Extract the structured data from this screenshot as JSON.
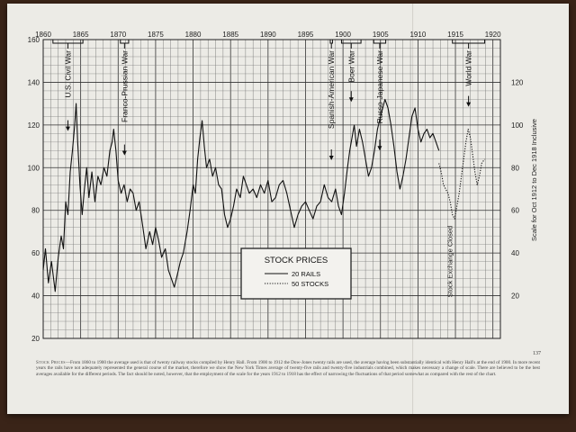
{
  "chart_data": {
    "type": "line",
    "title": "",
    "xlabel": "",
    "ylabel": "",
    "x_ticks": [
      1860,
      1865,
      1870,
      1875,
      1880,
      1885,
      1890,
      1895,
      1900,
      1905,
      1910,
      1915,
      1920
    ],
    "xlim": [
      1860,
      1921
    ],
    "ylim_left": [
      20,
      160
    ],
    "y_ticks_left": [
      20,
      40,
      60,
      80,
      100,
      120,
      140,
      160
    ],
    "ylim_right": [
      0,
      140
    ],
    "y_ticks_right": [
      20,
      40,
      60,
      80,
      100,
      120
    ],
    "right_axis_label": "Scale for Oct 1912 to Dec 1918 Inclusive",
    "grid": true,
    "legend": {
      "title": "STOCK PRICES",
      "placement": "bottom-center",
      "entries": [
        "20 RAILS",
        "50 STOCKS"
      ]
    },
    "series": [
      {
        "name": "20 RAILS",
        "style": "solid",
        "points": [
          [
            1860.0,
            52
          ],
          [
            1860.3,
            62
          ],
          [
            1860.7,
            46
          ],
          [
            1861.1,
            56
          ],
          [
            1861.6,
            42
          ],
          [
            1862.0,
            58
          ],
          [
            1862.4,
            68
          ],
          [
            1862.7,
            62
          ],
          [
            1863.0,
            84
          ],
          [
            1863.3,
            78
          ],
          [
            1863.6,
            98
          ],
          [
            1863.9,
            108
          ],
          [
            1864.2,
            120
          ],
          [
            1864.4,
            130
          ],
          [
            1864.6,
            112
          ],
          [
            1864.9,
            92
          ],
          [
            1865.2,
            78
          ],
          [
            1865.5,
            90
          ],
          [
            1865.8,
            100
          ],
          [
            1866.1,
            86
          ],
          [
            1866.5,
            98
          ],
          [
            1866.9,
            84
          ],
          [
            1867.3,
            96
          ],
          [
            1867.7,
            92
          ],
          [
            1868.1,
            100
          ],
          [
            1868.5,
            96
          ],
          [
            1868.9,
            108
          ],
          [
            1869.2,
            112
          ],
          [
            1869.4,
            118
          ],
          [
            1869.7,
            108
          ],
          [
            1870.0,
            94
          ],
          [
            1870.4,
            88
          ],
          [
            1870.8,
            92
          ],
          [
            1871.2,
            84
          ],
          [
            1871.6,
            90
          ],
          [
            1872.0,
            88
          ],
          [
            1872.4,
            80
          ],
          [
            1872.8,
            84
          ],
          [
            1873.3,
            72
          ],
          [
            1873.7,
            62
          ],
          [
            1874.2,
            70
          ],
          [
            1874.6,
            64
          ],
          [
            1875.0,
            72
          ],
          [
            1875.4,
            66
          ],
          [
            1875.8,
            58
          ],
          [
            1876.3,
            62
          ],
          [
            1876.7,
            52
          ],
          [
            1877.1,
            48
          ],
          [
            1877.5,
            44
          ],
          [
            1877.9,
            50
          ],
          [
            1878.3,
            56
          ],
          [
            1878.7,
            60
          ],
          [
            1879.2,
            70
          ],
          [
            1879.6,
            80
          ],
          [
            1880.0,
            92
          ],
          [
            1880.3,
            88
          ],
          [
            1880.6,
            104
          ],
          [
            1880.9,
            114
          ],
          [
            1881.2,
            122
          ],
          [
            1881.5,
            110
          ],
          [
            1881.8,
            100
          ],
          [
            1882.2,
            104
          ],
          [
            1882.6,
            96
          ],
          [
            1883.0,
            100
          ],
          [
            1883.4,
            92
          ],
          [
            1883.8,
            90
          ],
          [
            1884.2,
            78
          ],
          [
            1884.6,
            72
          ],
          [
            1885.0,
            76
          ],
          [
            1885.4,
            82
          ],
          [
            1885.8,
            90
          ],
          [
            1886.3,
            86
          ],
          [
            1886.7,
            96
          ],
          [
            1887.1,
            92
          ],
          [
            1887.5,
            88
          ],
          [
            1888.0,
            90
          ],
          [
            1888.5,
            86
          ],
          [
            1889.0,
            92
          ],
          [
            1889.5,
            88
          ],
          [
            1890.0,
            94
          ],
          [
            1890.5,
            84
          ],
          [
            1891.0,
            86
          ],
          [
            1891.5,
            92
          ],
          [
            1892.0,
            94
          ],
          [
            1892.5,
            88
          ],
          [
            1893.0,
            80
          ],
          [
            1893.5,
            72
          ],
          [
            1894.0,
            78
          ],
          [
            1894.5,
            82
          ],
          [
            1895.0,
            84
          ],
          [
            1895.5,
            80
          ],
          [
            1896.0,
            76
          ],
          [
            1896.5,
            82
          ],
          [
            1897.0,
            84
          ],
          [
            1897.5,
            92
          ],
          [
            1898.0,
            86
          ],
          [
            1898.5,
            84
          ],
          [
            1899.0,
            90
          ],
          [
            1899.4,
            82
          ],
          [
            1899.8,
            78
          ],
          [
            1900.2,
            88
          ],
          [
            1900.6,
            100
          ],
          [
            1900.9,
            108
          ],
          [
            1901.2,
            114
          ],
          [
            1901.5,
            120
          ],
          [
            1901.8,
            110
          ],
          [
            1902.2,
            118
          ],
          [
            1902.6,
            112
          ],
          [
            1903.0,
            104
          ],
          [
            1903.4,
            96
          ],
          [
            1903.8,
            100
          ],
          [
            1904.2,
            108
          ],
          [
            1904.6,
            118
          ],
          [
            1905.0,
            124
          ],
          [
            1905.3,
            128
          ],
          [
            1905.6,
            132
          ],
          [
            1906.0,
            128
          ],
          [
            1906.4,
            120
          ],
          [
            1906.8,
            110
          ],
          [
            1907.2,
            98
          ],
          [
            1907.6,
            90
          ],
          [
            1908.0,
            96
          ],
          [
            1908.4,
            104
          ],
          [
            1908.8,
            114
          ],
          [
            1909.2,
            124
          ],
          [
            1909.6,
            128
          ],
          [
            1910.0,
            118
          ],
          [
            1910.4,
            112
          ],
          [
            1910.8,
            116
          ],
          [
            1911.2,
            118
          ],
          [
            1911.6,
            114
          ],
          [
            1912.0,
            116
          ],
          [
            1912.4,
            112
          ],
          [
            1912.8,
            108
          ]
        ]
      },
      {
        "name": "50 STOCKS",
        "style": "dotted",
        "axis": "right",
        "points": [
          [
            1912.8,
            82
          ],
          [
            1913.1,
            78
          ],
          [
            1913.4,
            72
          ],
          [
            1913.7,
            70
          ],
          [
            1914.0,
            68
          ],
          [
            1914.3,
            64
          ],
          [
            1914.6,
            58
          ],
          [
            1914.9,
            56
          ],
          [
            1915.2,
            62
          ],
          [
            1915.5,
            68
          ],
          [
            1915.8,
            76
          ],
          [
            1916.1,
            84
          ],
          [
            1916.4,
            92
          ],
          [
            1916.7,
            98
          ],
          [
            1917.0,
            94
          ],
          [
            1917.3,
            86
          ],
          [
            1917.6,
            78
          ],
          [
            1917.9,
            72
          ],
          [
            1918.2,
            76
          ],
          [
            1918.5,
            82
          ],
          [
            1918.9,
            84
          ]
        ]
      }
    ],
    "annotations": [
      {
        "text": "U.S. Civil War",
        "from": 1861.3,
        "to": 1865.3
      },
      {
        "text": "Franco-Prussian War",
        "from": 1870.3,
        "to": 1871.4
      },
      {
        "text": "Spanish-American War",
        "from": 1898.3,
        "to": 1898.6
      },
      {
        "text": "Boer War",
        "from": 1899.8,
        "to": 1902.4
      },
      {
        "text": "Russo-Japanese War",
        "from": 1904.1,
        "to": 1905.7
      },
      {
        "text": "World War",
        "from": 1914.6,
        "to": 1918.9
      }
    ],
    "vertical_note": "Stock Exchange Closed"
  },
  "page_number": "137",
  "caption": {
    "lead": "Stock Prices",
    "text": "—From 1860 to 1900 the average used is that of twenty railway stocks compiled by Henry Hall. From 1900 to 1912 the Dow-Jones twenty rails are used, the average having been substantially identical with Henry Hall's at the end of 1900. In more recent years the rails have not adequately represented the general course of the market, therefore we show the New York Times average of twenty-five rails and twenty-five industrials combined, which makes necessary a change of scale. There are believed to be the best averages available for the different periods. The fact should be noted, however, that the employment of the scale for the years 1912 to 1918 has the effect of narrowing the fluctuations of that period somewhat as compared with the rest of the chart."
  }
}
